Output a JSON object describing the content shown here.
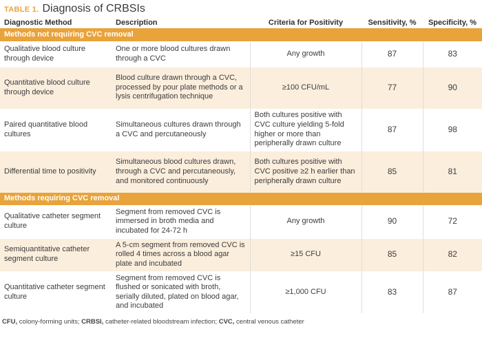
{
  "title": {
    "tag": "TABLE 1.",
    "text": "Diagnosis of CRBSIs"
  },
  "headers": {
    "method": "Diagnostic Method",
    "description": "Description",
    "criteria": "Criteria for Positivity",
    "sensitivity": "Sensitivity, %",
    "specificity": "Specificity, %"
  },
  "sections": [
    {
      "label": "Methods not requiring CVC removal",
      "rows": [
        {
          "method": "Qualitative blood culture through device",
          "description": "One or more blood cultures drawn through a CVC",
          "criteria": "Any growth",
          "sensitivity": "87",
          "specificity": "83"
        },
        {
          "method": "Quantitative blood culture through device",
          "description": "Blood culture drawn through a CVC, processed by pour plate methods or a lysis centrifugation technique",
          "criteria": "≥100 CFU/mL",
          "sensitivity": "77",
          "specificity": "90"
        },
        {
          "method": "Paired quantitative blood cultures",
          "description": "Simultaneous cultures drawn through a CVC and percutaneously",
          "criteria": "Both cultures positive with CVC culture yielding 5-fold higher or more than peripherally drawn culture",
          "sensitivity": "87",
          "specificity": "98"
        },
        {
          "method": "Differential time to positivity",
          "description": "Simultaneous blood cultures drawn, through a CVC and percutaneously, and monitored continuously",
          "criteria": "Both cultures positive with CVC positive ≥2 h earlier than peripherally drawn culture",
          "sensitivity": "85",
          "specificity": "81"
        }
      ]
    },
    {
      "label": "Methods requiring CVC removal",
      "rows": [
        {
          "method": "Qualitative catheter segment culture",
          "description": "Segment from removed CVC is immersed in broth media and incubated for 24-72 h",
          "criteria": "Any growth",
          "sensitivity": "90",
          "specificity": "72"
        },
        {
          "method": "Semiquantitative catheter segment culture",
          "description": "A 5-cm segment from removed CVC is rolled 4 times across a blood agar plate and incubated",
          "criteria": "≥15 CFU",
          "sensitivity": "85",
          "specificity": "82"
        },
        {
          "method": "Quantitative catheter segment culture",
          "description": "Segment from removed CVC is flushed or sonicated with broth, serially diluted, plated on blood agar, and incubated",
          "criteria": "≥1,000 CFU",
          "sensitivity": "83",
          "specificity": "87"
        }
      ]
    }
  ],
  "footnote": [
    {
      "abbr": "CFU,",
      "text": " colony-forming units; "
    },
    {
      "abbr": "CRBSI,",
      "text": " catheter-related bloodstream infection; "
    },
    {
      "abbr": "CVC,",
      "text": " central venous catheter"
    }
  ],
  "colors": {
    "accent": "#e8a33a",
    "alt_row": "#fbeedd",
    "text": "#3a3a3a"
  }
}
